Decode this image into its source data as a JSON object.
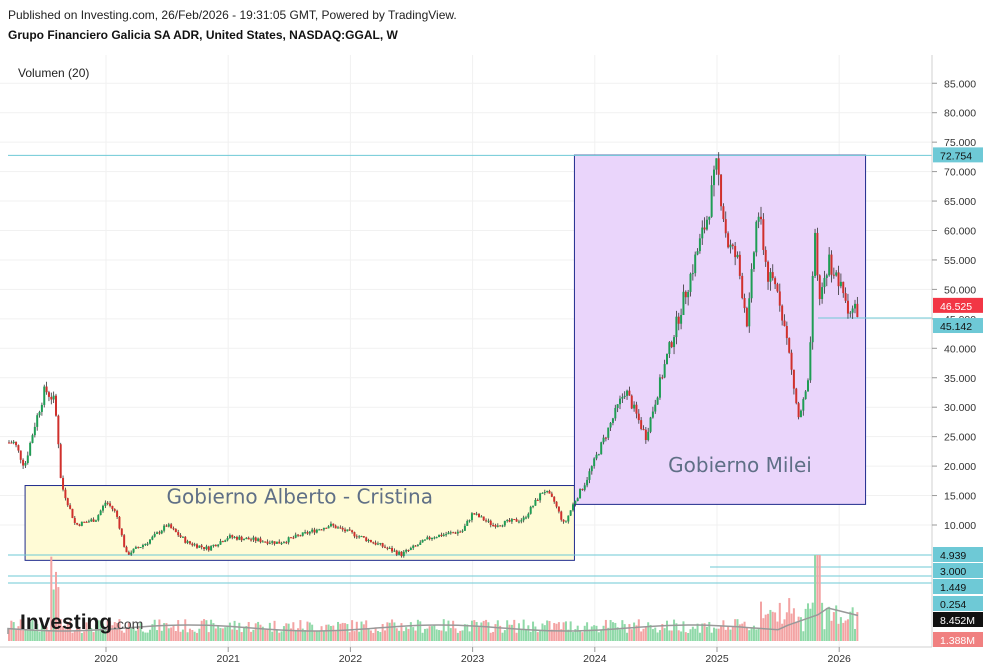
{
  "header": {
    "published": "Published on Investing.com, 26/Feb/2026 - 19:31:05 GMT, Powered by TradingView.",
    "title": "Grupo Financiero Galicia SA ADR, United States, NASDAQ:GGAL, W"
  },
  "watermark": {
    "brand": "Investing",
    "suffix": ".com"
  },
  "chart_data": {
    "type": "candlestick",
    "indicator": "Volumen (20)",
    "x_ticks": [
      "2020",
      "2021",
      "2022",
      "2023",
      "2024",
      "2025",
      "2026"
    ],
    "y_ticks": [
      "85.000",
      "80.000",
      "75.000",
      "70.000",
      "65.000",
      "60.000",
      "55.000",
      "50.000",
      "45.000",
      "40.000",
      "35.000",
      "30.000",
      "25.000",
      "20.000",
      "15.000",
      "10.000"
    ],
    "ylim": [
      0,
      88
    ],
    "horizontal_levels": [
      {
        "label": "72.754",
        "value": 72.754,
        "color": "#6ec9d6"
      },
      {
        "label": "45.142",
        "value": 45.142,
        "color": "#6ec9d6"
      }
    ],
    "last_price": {
      "label": "46.525",
      "value": 46.525,
      "color": "#f23645"
    },
    "volume_levels": [
      {
        "label": "4.939",
        "value": 4.939,
        "color": "#6ec9d6"
      },
      {
        "label": "3.000",
        "value": 3.0,
        "color": "#6ec9d6"
      },
      {
        "label": "1.449",
        "value": 1.449,
        "color": "#6ec9d6"
      },
      {
        "label": "0.254",
        "value": 0.254,
        "color": "#6ec9d6"
      }
    ],
    "volume_markers": [
      {
        "label": "8.452M",
        "color": "#111111"
      },
      {
        "label": "1.388M",
        "color": "#f08080"
      }
    ],
    "annotations": [
      {
        "text": "Gobierno Alberto - Cristina",
        "fill": "#fffbd6",
        "start": "2019-08",
        "end": "2023-11",
        "low": 4,
        "high": 16.7
      },
      {
        "text": "Gobierno Milei",
        "fill": "#ead5fb",
        "start": "2023-11",
        "end": "2026-03",
        "low": 13.5,
        "high": 72.8
      }
    ],
    "price_path": [
      [
        "2019-04",
        24
      ],
      [
        "2019-05",
        20
      ],
      [
        "2019-06",
        27
      ],
      [
        "2019-07",
        33
      ],
      [
        "2019-08",
        31
      ],
      [
        "2019-08b",
        17
      ],
      [
        "2019-10",
        10
      ],
      [
        "2019-12",
        11
      ],
      [
        "2020-01",
        14
      ],
      [
        "2020-02",
        12
      ],
      [
        "2020-03",
        5
      ],
      [
        "2020-05",
        7
      ],
      [
        "2020-07",
        10
      ],
      [
        "2020-09",
        7
      ],
      [
        "2020-11",
        6
      ],
      [
        "2021-01",
        8
      ],
      [
        "2021-06",
        7
      ],
      [
        "2021-11",
        10
      ],
      [
        "2022-02",
        8
      ],
      [
        "2022-06",
        5
      ],
      [
        "2022-09",
        8
      ],
      [
        "2022-12",
        9
      ],
      [
        "2023-01",
        12
      ],
      [
        "2023-03",
        10
      ],
      [
        "2023-06",
        11
      ],
      [
        "2023-08",
        16
      ],
      [
        "2023-09",
        14
      ],
      [
        "2023-10",
        10
      ],
      [
        "2023-11",
        14
      ],
      [
        "2023-12",
        17
      ],
      [
        "2024-02",
        25
      ],
      [
        "2024-04",
        33
      ],
      [
        "2024-06",
        25
      ],
      [
        "2024-08",
        38
      ],
      [
        "2024-10",
        50
      ],
      [
        "2024-12",
        62
      ],
      [
        "2025-01",
        71
      ],
      [
        "2025-02",
        58
      ],
      [
        "2025-03",
        55
      ],
      [
        "2025-04",
        44
      ],
      [
        "2025-05",
        64
      ],
      [
        "2025-06",
        52
      ],
      [
        "2025-07",
        50
      ],
      [
        "2025-08",
        40
      ],
      [
        "2025-09",
        28
      ],
      [
        "2025-10",
        34
      ],
      [
        "2025-10b",
        59
      ],
      [
        "2025-11",
        48
      ],
      [
        "2025-12",
        55
      ],
      [
        "2026-02",
        46.5
      ]
    ]
  }
}
